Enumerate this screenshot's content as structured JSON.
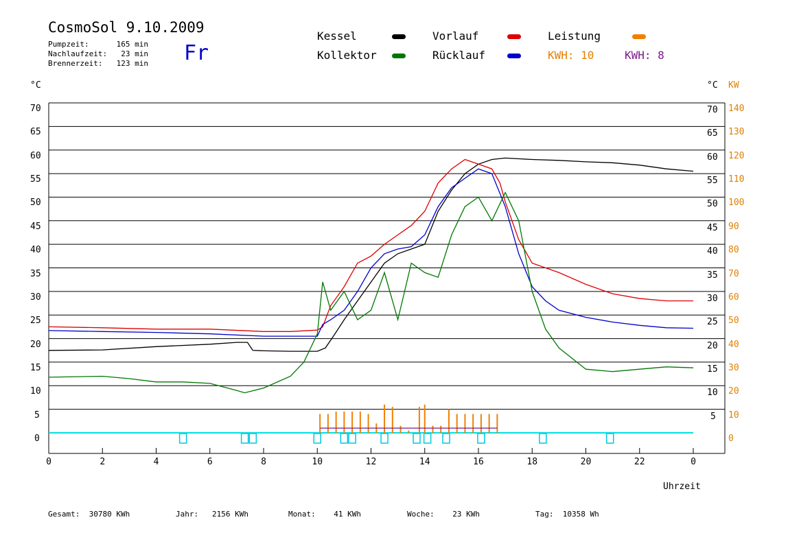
{
  "header": {
    "title": "CosmoSol 9.10.2009",
    "day": "Fr",
    "stats": [
      {
        "label": "Pumpzeit:",
        "value": "165 min"
      },
      {
        "label": "Nachlaufzeit:",
        "value": "23 min"
      },
      {
        "label": "Brennerzeit:",
        "value": "123 min"
      }
    ]
  },
  "legend": {
    "kessel": {
      "label": "Kessel",
      "color": "#000000"
    },
    "vorlauf": {
      "label": "Vorlauf",
      "color": "#dd0000"
    },
    "leistung": {
      "label": "Leistung",
      "color": "#f08000"
    },
    "kollektor": {
      "label": "Kollektor",
      "color": "#007700"
    },
    "ruecklauf": {
      "label": "Rücklauf",
      "color": "#0000cc"
    },
    "kwh1": {
      "label": "KWH: 10",
      "color": "#e08000"
    },
    "kwh2": {
      "label": "KWH: 8",
      "color": "#7a1a8a"
    }
  },
  "footer": {
    "gesamt": {
      "label": "Gesamt:",
      "value": "30780 KWh"
    },
    "jahr": {
      "label": "Jahr:",
      "value": "2156 KWh"
    },
    "monat": {
      "label": "Monat:",
      "value": "41 KWh"
    },
    "woche": {
      "label": "Woche:",
      "value": "23 KWh"
    },
    "tag": {
      "label": "Tag:",
      "value": "10358 Wh"
    }
  },
  "chart_data": {
    "type": "line",
    "ylabel_left": "°C",
    "ylabel_right_temp": "°C",
    "ylabel_right_power": "KW",
    "xlabel": "Uhrzeit",
    "xlim": [
      0,
      24
    ],
    "ylim": [
      0,
      70
    ],
    "x_ticks": [
      "0",
      "2",
      "4",
      "6",
      "8",
      "10",
      "12",
      "14",
      "16",
      "18",
      "20",
      "22",
      "0"
    ],
    "y_ticks_left": [
      "0",
      "5",
      "10",
      "15",
      "20",
      "25",
      "30",
      "35",
      "40",
      "45",
      "50",
      "55",
      "60",
      "65",
      "70"
    ],
    "y_ticks_right_temp": [
      "5",
      "10",
      "15",
      "20",
      "25",
      "30",
      "35",
      "40",
      "45",
      "50",
      "55",
      "60",
      "65",
      "70"
    ],
    "y_ticks_right_power": [
      "0",
      "10",
      "20",
      "30",
      "40",
      "50",
      "60",
      "70",
      "80",
      "90",
      "100",
      "110",
      "120",
      "130",
      "140"
    ],
    "grid": true,
    "series": [
      {
        "name": "Kessel",
        "color": "#000000",
        "x": [
          0,
          2,
          4,
          6,
          7.0,
          7.4,
          7.6,
          8,
          9,
          10,
          10.3,
          10.6,
          11,
          11.5,
          12,
          12.5,
          13,
          13.5,
          14,
          14.5,
          15,
          15.5,
          16,
          16.5,
          17,
          18,
          19,
          20,
          21,
          22,
          23,
          24
        ],
        "y": [
          17.5,
          17.6,
          18.3,
          18.8,
          19.2,
          19.2,
          17.5,
          17.4,
          17.3,
          17.3,
          18.0,
          20.5,
          24.0,
          28.0,
          32.0,
          36.0,
          38.0,
          39.0,
          40.0,
          47.0,
          51.5,
          55.0,
          57.0,
          58.0,
          58.3,
          58.0,
          57.8,
          57.5,
          57.3,
          56.8,
          56.0,
          55.5
        ]
      },
      {
        "name": "Vorlauf",
        "color": "#dd0000",
        "x": [
          0,
          2,
          4,
          6,
          8,
          9,
          10,
          10.2,
          10.5,
          11,
          11.5,
          12,
          12.5,
          13,
          13.5,
          14,
          14.5,
          15,
          15.5,
          16,
          16.5,
          16.8,
          17,
          17.5,
          18,
          19,
          20,
          21,
          22,
          23,
          24
        ],
        "y": [
          22.5,
          22.3,
          22.0,
          22.0,
          21.5,
          21.5,
          21.8,
          22.5,
          27.0,
          31.0,
          36.0,
          37.5,
          40.0,
          42.0,
          44.0,
          47.0,
          53.0,
          56.0,
          58.0,
          57.0,
          56.0,
          53.0,
          49.0,
          41.0,
          36.0,
          34.0,
          31.5,
          29.5,
          28.5,
          28.0,
          28.0
        ]
      },
      {
        "name": "Rücklauf",
        "color": "#0000cc",
        "x": [
          0,
          2,
          4,
          6,
          8,
          9,
          10,
          10.2,
          10.5,
          11,
          11.5,
          12,
          12.5,
          13,
          13.5,
          14,
          14.5,
          15,
          15.5,
          16,
          16.5,
          17,
          17.5,
          18,
          18.5,
          19,
          20,
          21,
          22,
          23,
          24
        ],
        "y": [
          21.7,
          21.5,
          21.3,
          21.0,
          20.5,
          20.5,
          20.5,
          23.0,
          24.0,
          26.0,
          30.0,
          35.0,
          38.0,
          39.0,
          39.5,
          42.0,
          48.0,
          52.0,
          54.0,
          56.0,
          55.0,
          48.0,
          38.0,
          31.0,
          28.0,
          26.0,
          24.5,
          23.5,
          22.8,
          22.3,
          22.2
        ]
      },
      {
        "name": "Kollektor",
        "color": "#007700",
        "x": [
          0,
          2,
          3,
          4,
          5,
          6,
          7,
          7.3,
          8,
          9,
          9.5,
          10,
          10.2,
          10.5,
          11,
          11.5,
          12,
          12.5,
          13,
          13.5,
          14,
          14.5,
          15,
          15.5,
          16,
          16.5,
          17,
          17.5,
          18,
          18.5,
          19,
          20,
          21,
          22,
          23,
          24
        ],
        "y": [
          11.8,
          12.0,
          11.5,
          10.8,
          10.8,
          10.5,
          9.0,
          8.5,
          9.5,
          12.0,
          15.0,
          21.0,
          32.0,
          26.0,
          30.0,
          24.0,
          26.0,
          34.0,
          24.0,
          36.0,
          34.0,
          33.0,
          42.0,
          48.0,
          50.0,
          45.0,
          51.0,
          45.0,
          30.0,
          22.0,
          18.0,
          13.5,
          13.0,
          13.5,
          14.0,
          13.8
        ]
      },
      {
        "name": "Leistung",
        "color": "#f08000",
        "x": [
          10.1,
          10.4,
          10.7,
          11.0,
          11.3,
          11.6,
          11.9,
          12.2,
          12.5,
          12.8,
          13.1,
          13.4,
          13.8,
          14.0,
          14.3,
          14.6,
          14.9,
          15.2,
          15.5,
          15.8,
          16.1,
          16.4,
          16.7
        ],
        "y": [
          4.0,
          4.0,
          4.5,
          4.5,
          4.5,
          4.5,
          4.0,
          2.0,
          6.0,
          5.5,
          1.5,
          0.5,
          5.5,
          6.0,
          1.5,
          1.5,
          5.0,
          4.0,
          4.0,
          4.0,
          4.0,
          4.0,
          4.0
        ]
      }
    ],
    "markers_x": [
      5.0,
      7.3,
      7.6,
      10.0,
      11.0,
      11.3,
      12.5,
      13.7,
      14.1,
      14.8,
      16.1,
      18.4,
      20.9
    ]
  }
}
